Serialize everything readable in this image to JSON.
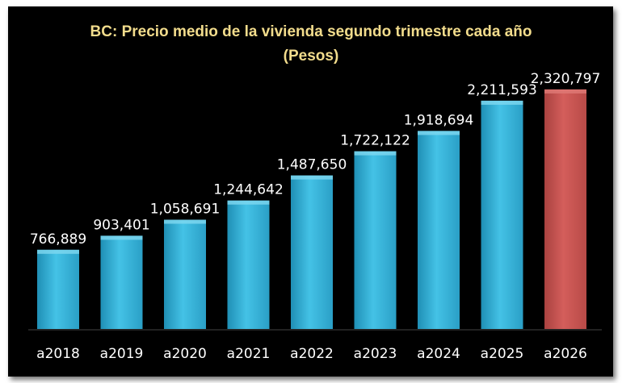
{
  "chart_data": {
    "type": "bar",
    "title": "BC: Precio medio de la vivienda segundo trimestre cada año",
    "subtitle": "(Pesos)",
    "categories": [
      "a2018",
      "a2019",
      "a2020",
      "a2021",
      "a2022",
      "a2023",
      "a2024",
      "a2025",
      "a2026"
    ],
    "values": [
      766889,
      903401,
      1058691,
      1244642,
      1487650,
      1722122,
      1918694,
      2211593,
      2320797
    ],
    "value_labels": [
      "766,889",
      "903,401",
      "1,058,691",
      "1,244,642",
      "1,487,650",
      "1,722,122",
      "1,918,694",
      "2,211,593",
      "2,320,797"
    ],
    "ylim": [
      0,
      2500000
    ],
    "grid": false,
    "legend": "none",
    "colors": {
      "background": "#000000",
      "bar": "#3cb6dd",
      "highlight_bar": "#c95552",
      "title": "#f2dc8c",
      "labels": "#ffffff"
    },
    "highlight_category": "a2026"
  }
}
